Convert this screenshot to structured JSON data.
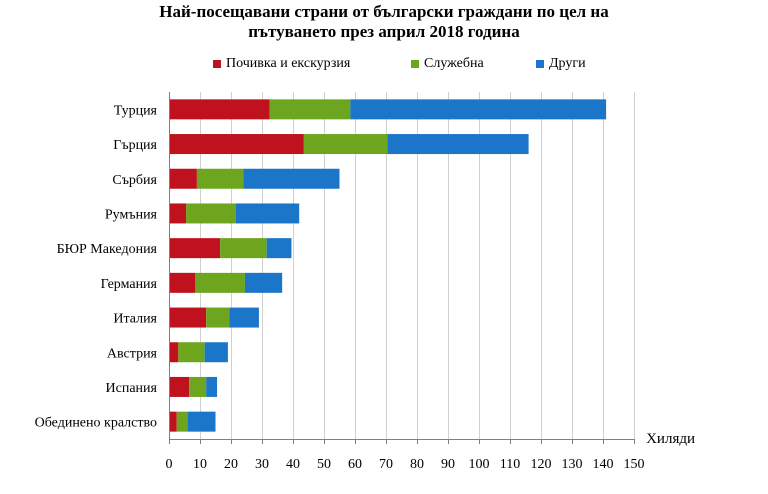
{
  "chart_data": {
    "type": "bar",
    "orientation": "horizontal",
    "stacked": true,
    "title_lines": [
      "Най-посещавани страни от български граждани по цел на",
      "пътуването през април 2018 година"
    ],
    "xlabel": "Хиляди",
    "ylabel": "",
    "xlim": [
      0,
      150
    ],
    "xticks": [
      0,
      10,
      20,
      30,
      40,
      50,
      60,
      70,
      80,
      90,
      100,
      110,
      120,
      130,
      140,
      150
    ],
    "grid": true,
    "legend_position": "top",
    "categories": [
      "Турция",
      "Гърция",
      "Сърбия",
      "Румъния",
      "БЮР Македония",
      "Германия",
      "Италия",
      "Австрия",
      "Испания",
      "Обединено кралство"
    ],
    "series": [
      {
        "name": "Почивка и екскурзия",
        "color": "#c0111f",
        "values": [
          32.5,
          43.5,
          9,
          5.5,
          16.5,
          8.5,
          12,
          3,
          6.5,
          2.5
        ]
      },
      {
        "name": "Служебна",
        "color": "#6ea51e",
        "values": [
          26,
          27,
          15,
          16,
          15,
          16,
          7.5,
          8.5,
          5.5,
          3.5
        ]
      },
      {
        "name": "Други",
        "color": "#1b76c9",
        "values": [
          82.5,
          45.5,
          31,
          20.5,
          8,
          12,
          9.5,
          7.5,
          3.5,
          9
        ]
      }
    ]
  }
}
